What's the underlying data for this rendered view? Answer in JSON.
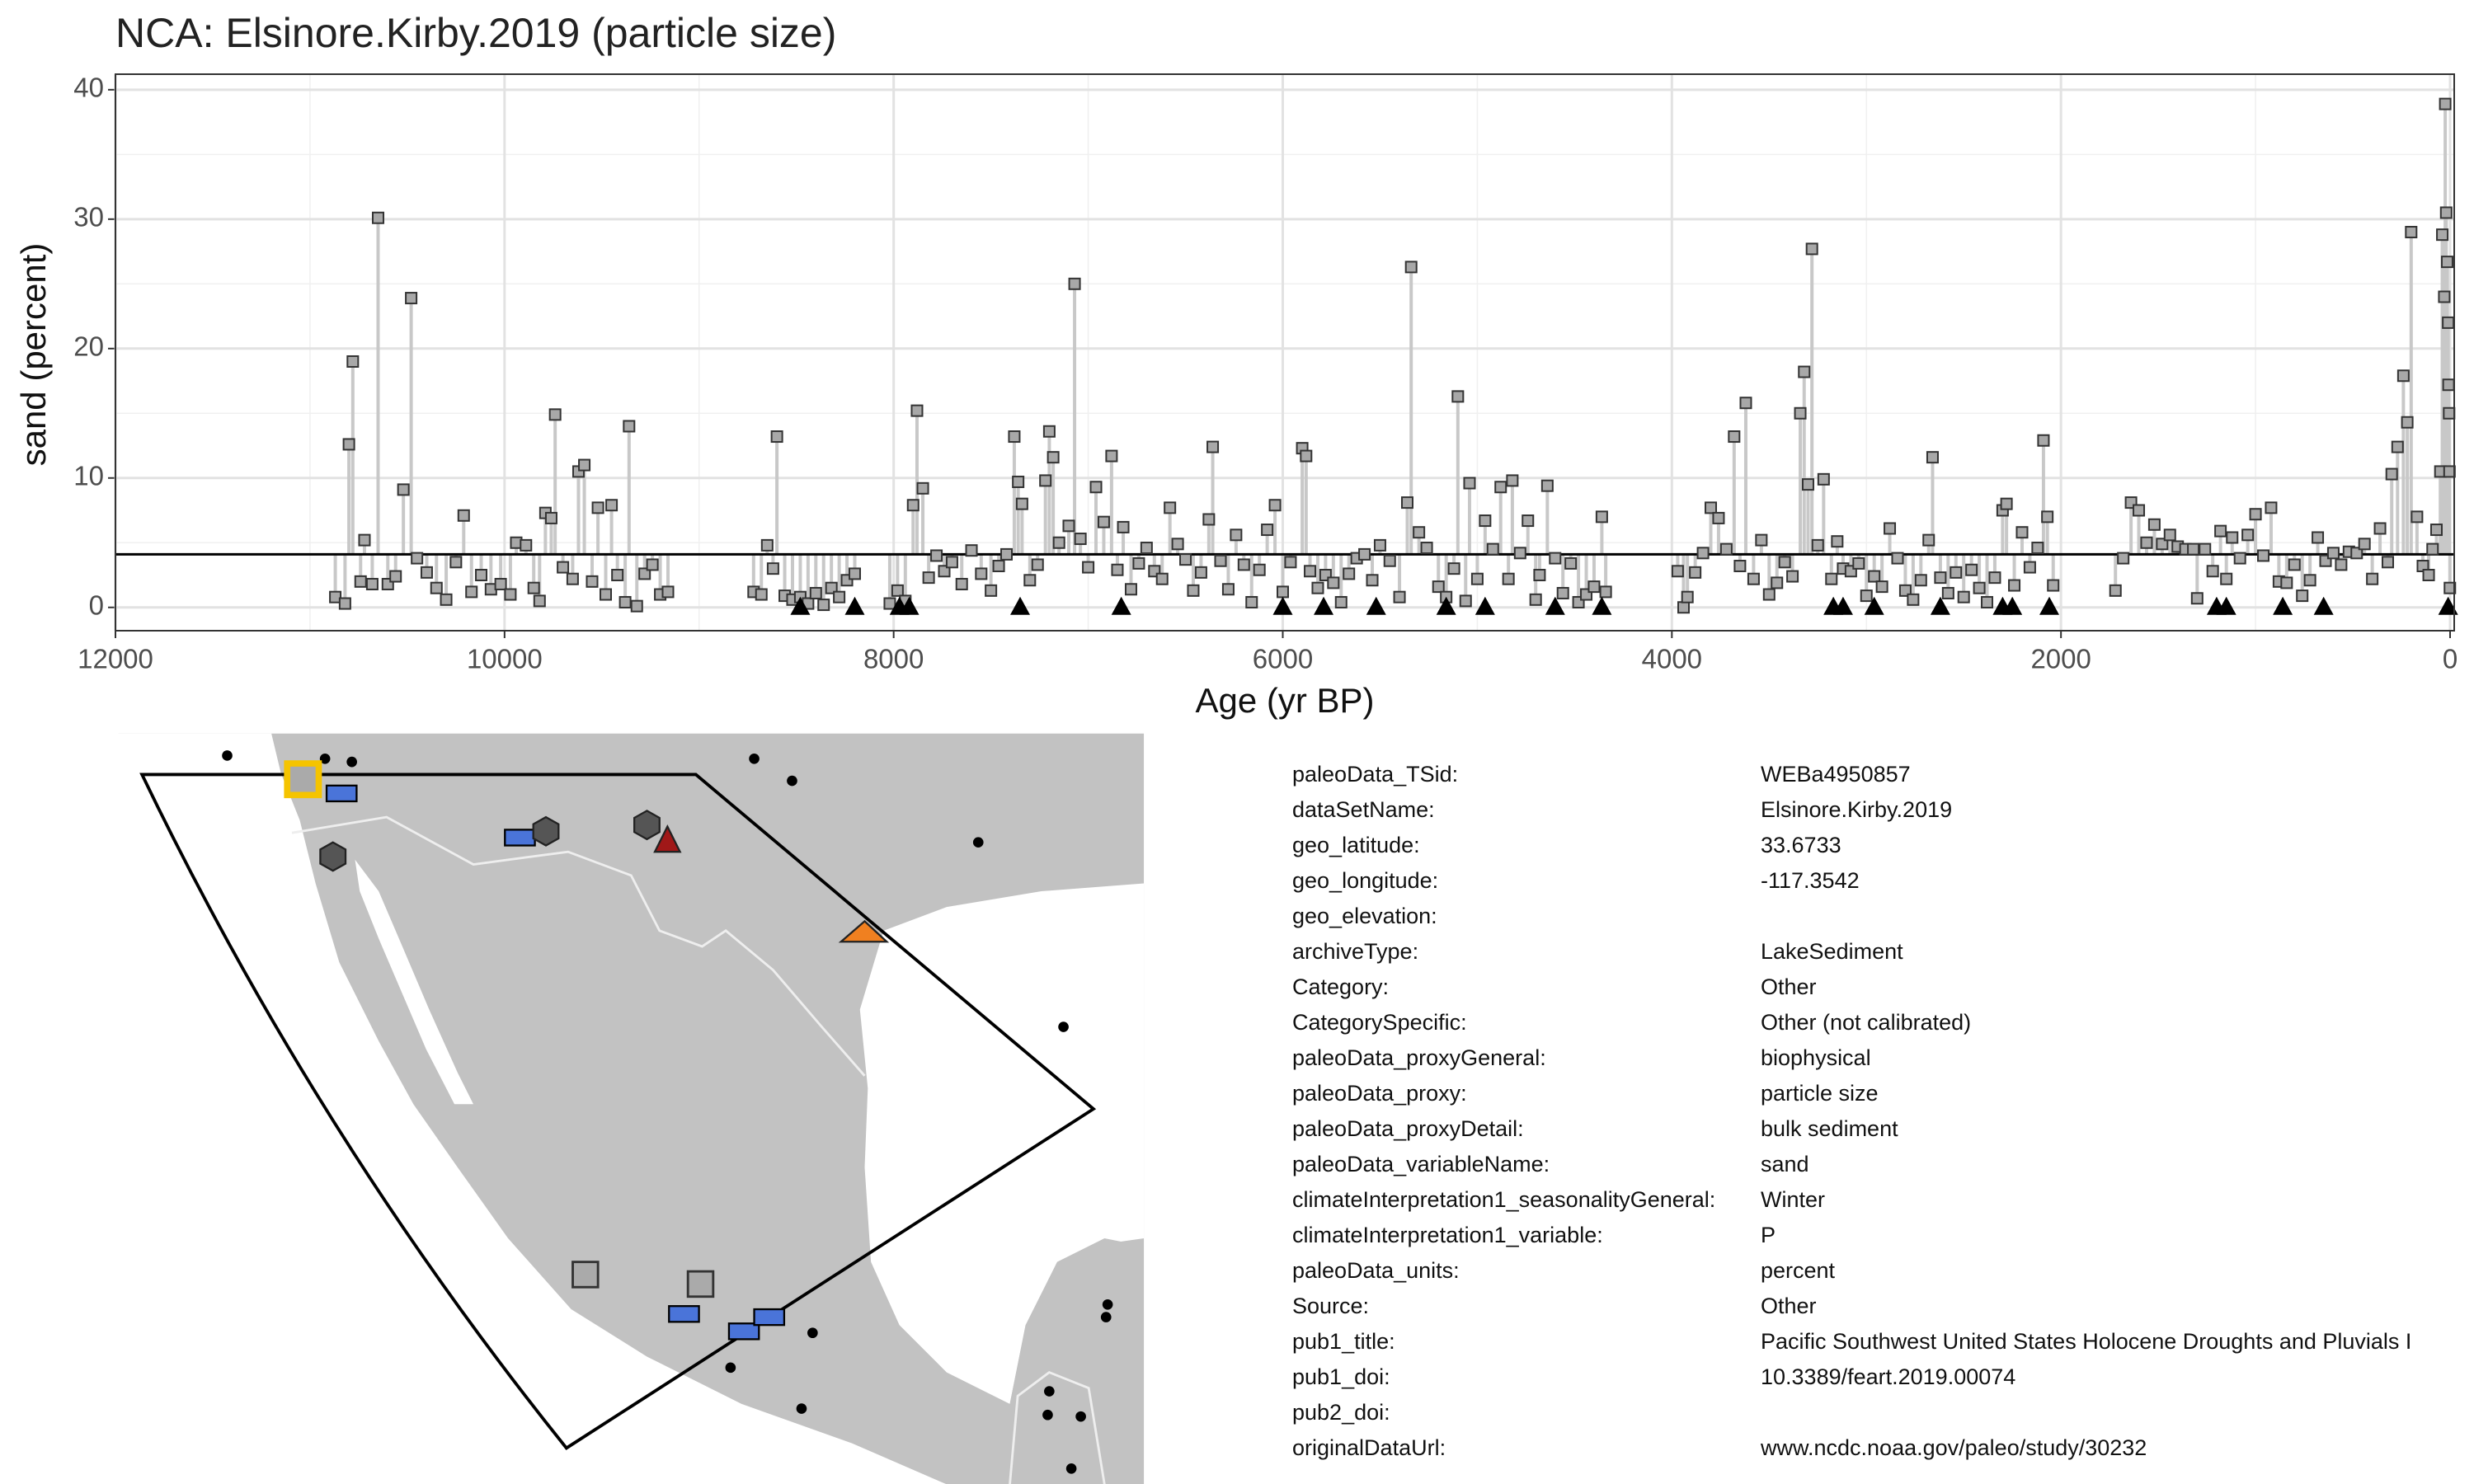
{
  "chart_data": {
    "type": "lollipop",
    "title": "NCA: Elsinore.Kirby.2019 (particle size)",
    "x_label": "Age (yr BP)",
    "y_label": "sand (percent)",
    "xlim": [
      12000,
      0
    ],
    "ylim": [
      -1.8,
      41.2
    ],
    "xticks": [
      12000,
      10000,
      8000,
      6000,
      4000,
      2000,
      0
    ],
    "yticks": [
      0,
      10,
      20,
      30,
      40
    ],
    "grid": true,
    "color": "#a8a8a8",
    "stem_color": "#c8c8c8",
    "mean_line": 4.1,
    "x": [
      10870,
      10820,
      10800,
      10780,
      10740,
      10720,
      10680,
      10650,
      10600,
      10560,
      10520,
      10480,
      10450,
      10400,
      10350,
      10300,
      10250,
      10210,
      10170,
      10120,
      10070,
      10020,
      9970,
      9940,
      9890,
      9850,
      9820,
      9790,
      9760,
      9740,
      9700,
      9650,
      9620,
      9590,
      9550,
      9520,
      9480,
      9450,
      9420,
      9380,
      9360,
      9320,
      9280,
      9240,
      9200,
      9160,
      8720,
      8680,
      8650,
      8620,
      8600,
      8560,
      8520,
      8480,
      8440,
      8400,
      8360,
      8320,
      8280,
      8240,
      8200,
      8020,
      7980,
      7940,
      7900,
      7880,
      7850,
      7820,
      7780,
      7740,
      7700,
      7650,
      7600,
      7550,
      7500,
      7460,
      7420,
      7380,
      7360,
      7340,
      7300,
      7260,
      7220,
      7200,
      7180,
      7150,
      7100,
      7070,
      7040,
      7000,
      6960,
      6920,
      6880,
      6850,
      6820,
      6780,
      6740,
      6700,
      6660,
      6620,
      6580,
      6540,
      6500,
      6460,
      6420,
      6380,
      6360,
      6320,
      6280,
      6240,
      6200,
      6160,
      6120,
      6080,
      6040,
      6000,
      5960,
      5900,
      5880,
      5860,
      5820,
      5780,
      5740,
      5700,
      5660,
      5620,
      5580,
      5540,
      5500,
      5450,
      5400,
      5360,
      5340,
      5300,
      5260,
      5200,
      5160,
      5120,
      5100,
      5060,
      5040,
      5000,
      4960,
      4920,
      4880,
      4840,
      4820,
      4780,
      4740,
      4700,
      4680,
      4640,
      4600,
      4560,
      4520,
      4480,
      4440,
      4400,
      4360,
      4340,
      3970,
      3940,
      3920,
      3880,
      3840,
      3800,
      3760,
      3720,
      3680,
      3650,
      3620,
      3580,
      3540,
      3500,
      3460,
      3420,
      3380,
      3340,
      3320,
      3300,
      3280,
      3250,
      3220,
      3180,
      3150,
      3120,
      3080,
      3040,
      3000,
      2960,
      2920,
      2880,
      2840,
      2800,
      2760,
      2720,
      2680,
      2660,
      2620,
      2580,
      2540,
      2500,
      2460,
      2420,
      2380,
      2340,
      2300,
      2280,
      2240,
      2200,
      2160,
      2120,
      2090,
      2070,
      2040,
      1720,
      1680,
      1640,
      1600,
      1560,
      1520,
      1480,
      1440,
      1400,
      1360,
      1320,
      1300,
      1260,
      1220,
      1180,
      1150,
      1120,
      1080,
      1040,
      1000,
      960,
      920,
      880,
      840,
      800,
      760,
      720,
      680,
      640,
      600,
      560,
      520,
      480,
      440,
      400,
      360,
      320,
      300,
      270,
      240,
      220,
      200,
      170,
      140,
      110,
      90,
      70,
      50,
      40,
      30,
      25,
      20,
      15,
      10,
      8,
      5,
      3,
      1
    ],
    "values": [
      0.8,
      0.3,
      12.6,
      19,
      2,
      5.2,
      1.8,
      30.1,
      1.8,
      2.4,
      9.1,
      23.9,
      3.8,
      2.7,
      1.5,
      0.6,
      3.5,
      7.1,
      1.2,
      2.5,
      1.4,
      1.8,
      1,
      5,
      4.8,
      1.5,
      0.5,
      7.3,
      6.9,
      14.9,
      3.1,
      2.2,
      10.5,
      11,
      2,
      7.7,
      1,
      7.9,
      2.5,
      0.4,
      14,
      0.1,
      2.6,
      3.3,
      1,
      1.2,
      1.2,
      1,
      4.8,
      3,
      13.2,
      0.9,
      0.6,
      0.8,
      0.3,
      1.1,
      0.2,
      1.5,
      0.8,
      2.1,
      2.6,
      0.3,
      1.3,
      0.5,
      7.9,
      15.2,
      9.2,
      2.3,
      4,
      2.8,
      3.5,
      1.8,
      4.4,
      2.6,
      1.3,
      3.2,
      4.1,
      13.2,
      9.7,
      8,
      2.1,
      3.3,
      9.8,
      13.6,
      11.6,
      5,
      6.3,
      25,
      5.3,
      3.1,
      9.3,
      6.6,
      11.7,
      2.9,
      6.2,
      1.4,
      3.4,
      4.6,
      2.8,
      2.2,
      7.7,
      4.9,
      3.7,
      1.3,
      2.7,
      6.8,
      12.4,
      3.6,
      1.4,
      5.6,
      3.3,
      0.4,
      2.9,
      6,
      7.9,
      1.2,
      3.5,
      12.3,
      11.7,
      2.8,
      1.5,
      2.5,
      1.9,
      0.4,
      2.6,
      3.8,
      4.1,
      2.1,
      4.8,
      3.6,
      0.8,
      8.1,
      26.3,
      5.8,
      4.6,
      1.6,
      0.8,
      3,
      16.3,
      0.5,
      9.6,
      2.2,
      6.7,
      4.5,
      9.3,
      2.2,
      9.8,
      4.2,
      6.7,
      0.6,
      2.5,
      9.4,
      3.8,
      1.1,
      3.4,
      0.4,
      1,
      1.6,
      7,
      1.2,
      2.8,
      0,
      0.8,
      2.7,
      4.2,
      7.7,
      6.9,
      4.5,
      13.2,
      3.2,
      15.8,
      2.2,
      5.2,
      1,
      1.9,
      3.5,
      2.4,
      15,
      18.2,
      9.5,
      27.7,
      4.8,
      9.9,
      2.2,
      5.1,
      3,
      2.8,
      3.4,
      0.9,
      2.4,
      1.6,
      6.1,
      3.8,
      1.3,
      0.6,
      2.1,
      5.2,
      11.6,
      2.3,
      1.1,
      2.7,
      0.8,
      2.9,
      1.5,
      0.4,
      2.3,
      7.5,
      8,
      1.7,
      5.8,
      3.1,
      4.6,
      12.9,
      7,
      1.7,
      1.3,
      3.8,
      8.1,
      7.5,
      5,
      6.4,
      4.9,
      5.6,
      4.7,
      4.5,
      4.5,
      0.7,
      4.5,
      2.8,
      5.9,
      2.2,
      5.4,
      3.8,
      5.6,
      7.2,
      4,
      7.7,
      2,
      1.9,
      3.3,
      0.9,
      2.1,
      5.4,
      3.6,
      4.2,
      3.3,
      4.3,
      4.2,
      4.9,
      2.2,
      6.1,
      3.5,
      10.3,
      12.4,
      17.9,
      14.3,
      29,
      7,
      3.2,
      2.5,
      4.5,
      6,
      10.5,
      28.8,
      24,
      38.9,
      30.5,
      26.7,
      22,
      17.2,
      15,
      10.5,
      1.5
    ],
    "chron_ages": [
      8480,
      8200,
      7970,
      7920,
      7350,
      6830,
      6000,
      5790,
      5520,
      5160,
      4960,
      4600,
      4360,
      3170,
      3120,
      2960,
      2620,
      2300,
      2250,
      2060,
      1200,
      1150,
      860,
      650,
      10
    ]
  },
  "metadata": {
    "rows": [
      [
        "paleoData_TSid:",
        "WEBa4950857"
      ],
      [
        "dataSetName:",
        "Elsinore.Kirby.2019"
      ],
      [
        "geo_latitude:",
        "33.6733"
      ],
      [
        "geo_longitude:",
        "-117.3542"
      ],
      [
        "geo_elevation:"
      ],
      [
        "archiveType:",
        "LakeSediment"
      ],
      [
        "Category:",
        "Other"
      ],
      [
        "CategorySpecific:",
        "Other (not calibrated)"
      ],
      [
        "paleoData_proxyGeneral:",
        "biophysical"
      ],
      [
        "paleoData_proxy:",
        "particle size"
      ],
      [
        "paleoData_proxyDetail:",
        "bulk sediment"
      ],
      [
        "paleoData_variableName:",
        "sand"
      ],
      [
        "climateInterpretation1_seasonalityGeneral:",
        "Winter"
      ],
      [
        "climateInterpretation1_variable:",
        "P"
      ],
      [
        "paleoData_units:",
        "percent"
      ],
      [
        "Source:",
        "Other"
      ],
      [
        "pub1_title:",
        "Pacific Southwest United States Holocene Droughts and Pluvials I"
      ],
      [
        "pub1_doi:",
        "10.3389/feart.2019.00074"
      ],
      [
        "pub2_doi:"
      ],
      [
        "originalDataUrl:",
        "www.ncdc.noaa.gov/paleo/study/30232"
      ]
    ]
  }
}
